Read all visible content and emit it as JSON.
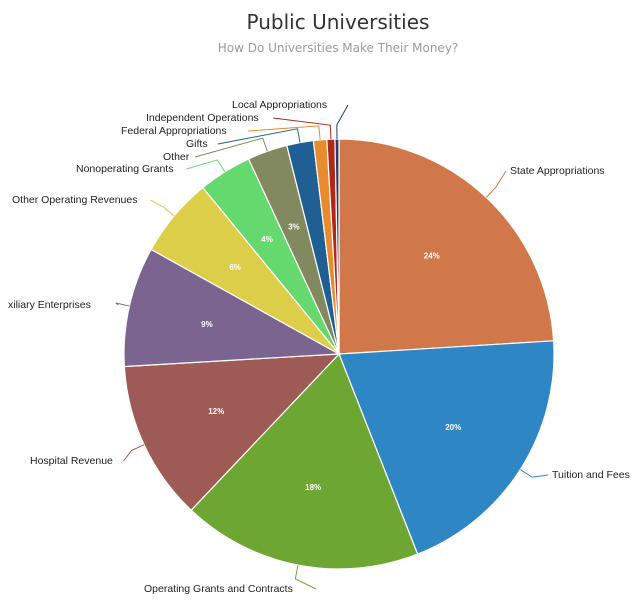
{
  "chart_data": {
    "type": "pie",
    "title": "Public Universities",
    "subtitle": "How Do Universities Make Their Money?",
    "legend": "none",
    "slices": [
      {
        "label": "State Appropriations",
        "value": 24,
        "pct_label": "24%",
        "color": "#d1784a"
      },
      {
        "label": "Tuition and Fees",
        "value": 20,
        "pct_label": "20%",
        "color": "#2f86c4"
      },
      {
        "label": "Operating Grants and Contracts",
        "value": 18,
        "pct_label": "18%",
        "color": "#6da632"
      },
      {
        "label": "Hospital Revenue",
        "value": 12,
        "pct_label": "12%",
        "color": "#9e5a55"
      },
      {
        "label": "xiliary Enterprises",
        "value": 9,
        "pct_label": "9%",
        "color": "#7c6490"
      },
      {
        "label": "Other Operating Revenues",
        "value": 6,
        "pct_label": "6%",
        "color": "#ddce4a"
      },
      {
        "label": "Nonoperating Grants",
        "value": 4,
        "pct_label": "4%",
        "color": "#66d96e"
      },
      {
        "label": "Other",
        "value": 3,
        "pct_label": "3%",
        "color": "#83895e"
      },
      {
        "label": "Gifts",
        "value": 2,
        "pct_label": "",
        "color": "#1f5f94"
      },
      {
        "label": "Federal Appropriations",
        "value": 1,
        "pct_label": "",
        "color": "#e88a2e"
      },
      {
        "label": "Independent Operations",
        "value": 0.6,
        "pct_label": "",
        "color": "#b0281c"
      },
      {
        "label": "Local Appropriations",
        "value": 0.3,
        "pct_label": "",
        "color": "#2a3a66"
      }
    ]
  }
}
